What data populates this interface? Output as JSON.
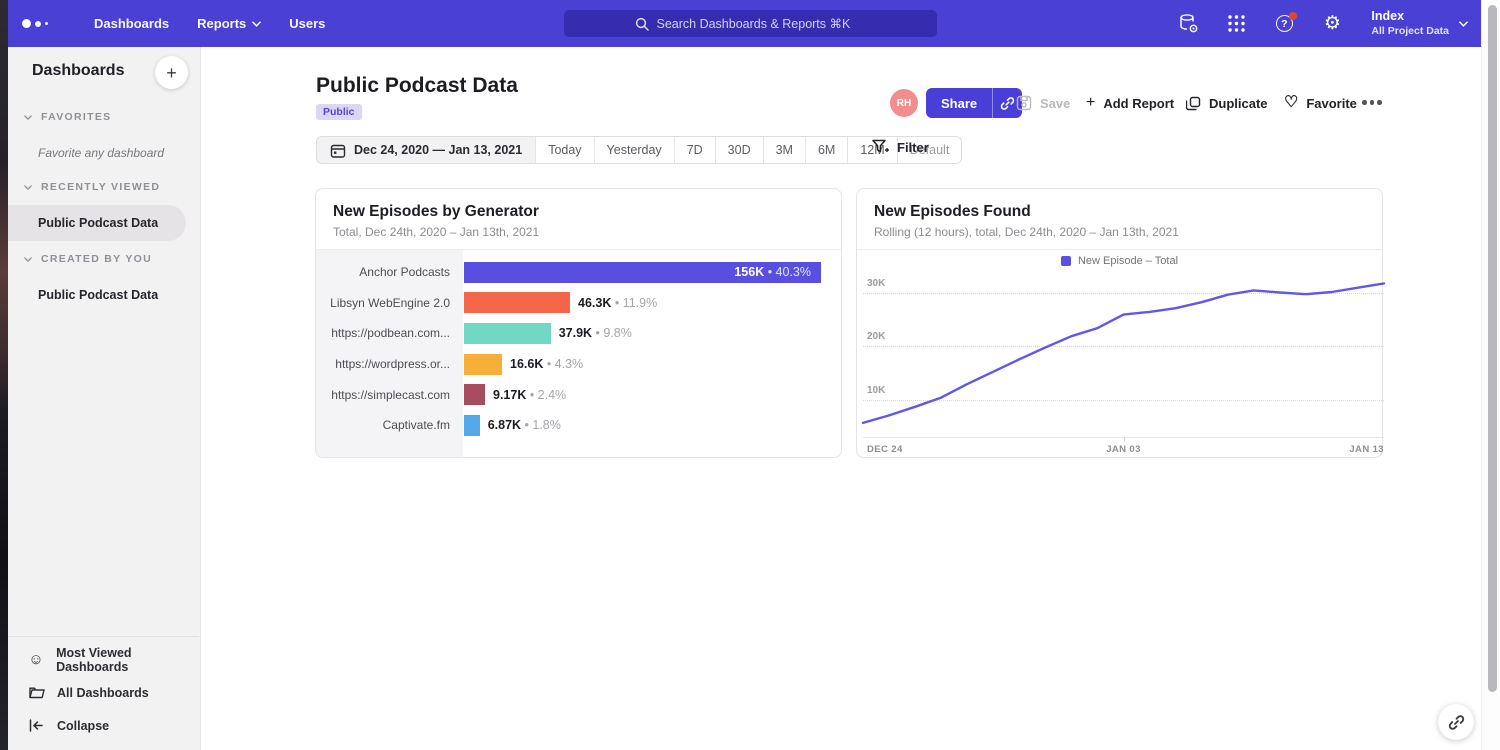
{
  "nav": {
    "items": [
      "Dashboards",
      "Reports",
      "Users"
    ],
    "search_placeholder": "Search Dashboards & Reports ⌘K",
    "project_name": "Index",
    "project_scope": "All Project Data"
  },
  "sidebar": {
    "title": "Dashboards",
    "add_label": "+",
    "sections": [
      {
        "label": "FAVORITES",
        "empty": "Favorite any dashboard"
      },
      {
        "label": "RECENTLY VIEWED",
        "item": "Public Podcast Data"
      },
      {
        "label": "CREATED BY YOU",
        "item": "Public Podcast Data"
      }
    ],
    "footer": [
      "Most Viewed Dashboards",
      "All Dashboards",
      "Collapse"
    ]
  },
  "header": {
    "title": "Public Podcast Data",
    "badge": "Public",
    "date_range": "Dec 24, 2020 — Jan 13, 2021",
    "date_options": [
      "Today",
      "Yesterday",
      "7D",
      "30D",
      "3M",
      "6M",
      "12M",
      "Default"
    ],
    "filter_label": "Filter"
  },
  "actions": {
    "avatar_initials": "RH",
    "share": "Share",
    "save": "Save",
    "add_report": "Add Report",
    "duplicate": "Duplicate",
    "favorite": "Favorite"
  },
  "chart_data": [
    {
      "type": "bar",
      "orientation": "horizontal",
      "title": "New Episodes by Generator",
      "subtitle": "Total, Dec 24th, 2020 – Jan 13th, 2021",
      "categories": [
        "Anchor Podcasts",
        "Libsyn WebEngine 2.0",
        "https://podbean.com...",
        "https://wordpress.or...",
        "https://simplecast.com",
        "Captivate.fm"
      ],
      "values": [
        156000,
        46300,
        37900,
        16600,
        9170,
        6870
      ],
      "value_labels": [
        "156K",
        "46.3K",
        "37.9K",
        "16.6K",
        "9.17K",
        "6.87K"
      ],
      "pct_labels": [
        "40.3%",
        "11.9%",
        "9.8%",
        "4.3%",
        "2.4%",
        "1.8%"
      ],
      "colors": [
        "#584fe0",
        "#f4654a",
        "#70d8c3",
        "#f6b03a",
        "#a74b5f",
        "#55a8e8"
      ],
      "xmax": 156000,
      "value_inside_first": true
    },
    {
      "type": "line",
      "title": "New Episodes Found",
      "subtitle": "Rolling (12 hours), total, Dec 24th, 2020 – Jan 13th, 2021",
      "legend_label": "New Episode – Total",
      "legend_color": "#5b50e0",
      "line_color": "#6157e8",
      "grid": "dotted-horizontal",
      "y_ticks": [
        "10K",
        "20K",
        "30K"
      ],
      "y_tick_values": [
        10000,
        20000,
        30000
      ],
      "ylim": [
        3000,
        34000
      ],
      "x_tick_labels": [
        "DEC 24",
        "JAN 03",
        "JAN 13"
      ],
      "values": [
        5800,
        7200,
        8800,
        10500,
        13000,
        15300,
        17600,
        19800,
        21900,
        23400,
        25900,
        26400,
        27100,
        28200,
        29600,
        30400,
        30000,
        29700,
        30100,
        30900,
        31700
      ]
    }
  ]
}
